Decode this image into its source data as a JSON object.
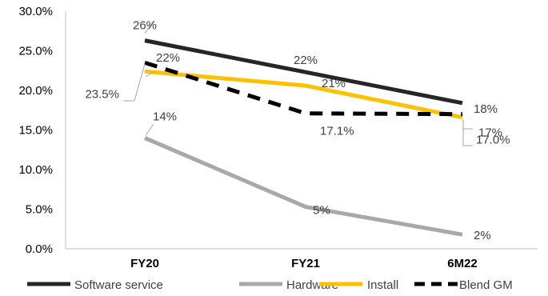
{
  "chart_data": {
    "type": "line",
    "title": "",
    "xlabel": "",
    "ylabel": "",
    "categories": [
      "FY20",
      "FY21",
      "6M22"
    ],
    "ylim": [
      0,
      30
    ],
    "yticks": [
      0,
      5,
      10,
      15,
      20,
      25,
      30
    ],
    "ytick_labels": [
      "0.0%",
      "5.0%",
      "10.0%",
      "15.0%",
      "20.0%",
      "25.0%",
      "30.0%"
    ],
    "grid": false,
    "legend_position": "bottom",
    "series": [
      {
        "name": "Software service",
        "values": [
          26.3,
          22.3,
          18.4
        ],
        "labels": [
          "26%",
          "22%",
          "18%"
        ],
        "color": "#262626",
        "dash": "solid"
      },
      {
        "name": "Hardware",
        "values": [
          14.0,
          5.3,
          1.8
        ],
        "labels": [
          "14%",
          "5%",
          "2%"
        ],
        "color": "#aaa7a7",
        "dash": "solid"
      },
      {
        "name": "Install",
        "values": [
          22.4,
          20.6,
          16.6
        ],
        "labels": [
          "22%",
          "21%",
          "17%"
        ],
        "color": "#ffc000",
        "dash": "solid"
      },
      {
        "name": "Blend GM",
        "values": [
          23.5,
          17.1,
          17.0
        ],
        "labels": [
          "23.5%",
          "17.1%",
          "17.0%"
        ],
        "color": "#000000",
        "dash": "dashed"
      }
    ]
  }
}
